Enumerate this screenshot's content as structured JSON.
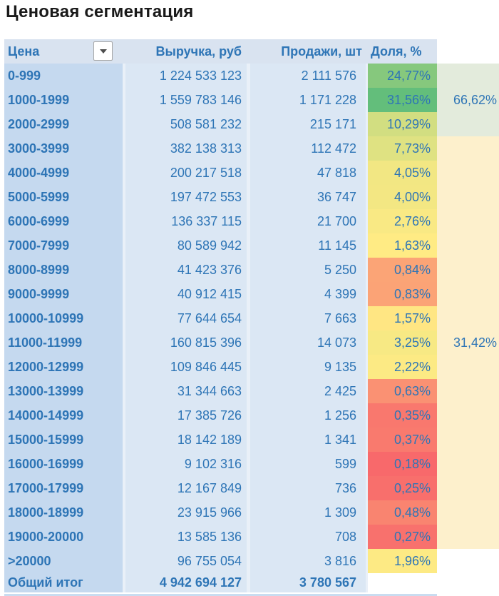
{
  "title": "Ценовая сегментация",
  "colors": {
    "header_bg": "#D9E3F0",
    "price_col_bg": "#C5D9EF",
    "data_col_bg": "#DBE7F4",
    "divider": "#E9F0F8",
    "text_blue": "#2E75B6",
    "zone_green": "#E3EBDC",
    "zone_cream": "#FDF0CC",
    "zone_none": "#FFFFFF",
    "scale_min_red": "#F8696B",
    "scale_mid_yellow": "#FFEB84",
    "scale_max_green": "#63BE7B"
  },
  "table": {
    "headers": {
      "price": "Цена",
      "revenue": "Выручка, руб",
      "sales": "Продажи, шт",
      "share": "Доля, %"
    },
    "filter_icon": "dropdown-arrow",
    "rows": [
      {
        "price": "0-999",
        "revenue": "1 224 533 123",
        "sales": "2 111 576",
        "share": "24,77%",
        "share_bg": "#86C87D",
        "zone": "green",
        "note": ""
      },
      {
        "price": "1000-1999",
        "revenue": "1 559 783 146",
        "sales": "1 171 228",
        "share": "31,56%",
        "share_bg": "#63BE7B",
        "zone": "green",
        "note": "66,62%"
      },
      {
        "price": "2000-2999",
        "revenue": "508 581 232",
        "sales": "215 171",
        "share": "10,29%",
        "share_bg": "#D2DE81",
        "zone": "green",
        "note": ""
      },
      {
        "price": "3000-3999",
        "revenue": "382 138 313",
        "sales": "112 472",
        "share": "7,73%",
        "share_bg": "#DFE282",
        "zone": "cream",
        "note": ""
      },
      {
        "price": "4000-4999",
        "revenue": "200 217 518",
        "sales": "47 818",
        "share": "4,05%",
        "share_bg": "#F2E783",
        "zone": "cream",
        "note": ""
      },
      {
        "price": "5000-5999",
        "revenue": "197 472 553",
        "sales": "36 747",
        "share": "4,00%",
        "share_bg": "#F3E783",
        "zone": "cream",
        "note": ""
      },
      {
        "price": "6000-6999",
        "revenue": "136 337 115",
        "sales": "21 700",
        "share": "2,76%",
        "share_bg": "#F9E984",
        "zone": "cream",
        "note": ""
      },
      {
        "price": "7000-7999",
        "revenue": "80 589 942",
        "sales": "11 145",
        "share": "1,63%",
        "share_bg": "#FFEB84",
        "zone": "cream",
        "note": ""
      },
      {
        "price": "8000-8999",
        "revenue": "41 423 376",
        "sales": "5 250",
        "share": "0,84%",
        "share_bg": "#FBA476",
        "zone": "cream",
        "note": ""
      },
      {
        "price": "9000-9999",
        "revenue": "40 912 415",
        "sales": "4 399",
        "share": "0,83%",
        "share_bg": "#FBA376",
        "zone": "cream",
        "note": ""
      },
      {
        "price": "10000-10999",
        "revenue": "77 644 654",
        "sales": "7 663",
        "share": "1,57%",
        "share_bg": "#FFE683",
        "zone": "cream",
        "note": ""
      },
      {
        "price": "11000-11999",
        "revenue": "160 815 396",
        "sales": "14 073",
        "share": "3,25%",
        "share_bg": "#F7E984",
        "zone": "cream",
        "note": "31,42%"
      },
      {
        "price": "12000-12999",
        "revenue": "109 846 445",
        "sales": "9 135",
        "share": "2,22%",
        "share_bg": "#FCEA84",
        "zone": "cream",
        "note": ""
      },
      {
        "price": "13000-13999",
        "revenue": "31 344 663",
        "sales": "2 425",
        "share": "0,63%",
        "share_bg": "#FA9173",
        "zone": "cream",
        "note": ""
      },
      {
        "price": "14000-14999",
        "revenue": "17 385 726",
        "sales": "1 256",
        "share": "0,35%",
        "share_bg": "#F9786E",
        "zone": "cream",
        "note": ""
      },
      {
        "price": "15000-15999",
        "revenue": "18 142 189",
        "sales": "1 341",
        "share": "0,37%",
        "share_bg": "#F97A6E",
        "zone": "cream",
        "note": ""
      },
      {
        "price": "16000-16999",
        "revenue": "9 102 316",
        "sales": "599",
        "share": "0,18%",
        "share_bg": "#F8696B",
        "zone": "cream",
        "note": ""
      },
      {
        "price": "17000-17999",
        "revenue": "12 167 849",
        "sales": "736",
        "share": "0,25%",
        "share_bg": "#F86F6C",
        "zone": "cream",
        "note": ""
      },
      {
        "price": "18000-18999",
        "revenue": "23 915 966",
        "sales": "1 309",
        "share": "0,48%",
        "share_bg": "#F98470",
        "zone": "cream",
        "note": ""
      },
      {
        "price": "19000-20000",
        "revenue": "13 585 136",
        "sales": "708",
        "share": "0,27%",
        "share_bg": "#F8716D",
        "zone": "cream",
        "note": ""
      },
      {
        "price": ">20000",
        "revenue": "96 755 054",
        "sales": "3 816",
        "share": "1,96%",
        "share_bg": "#FDEA84",
        "zone": "none",
        "note": ""
      }
    ],
    "total": {
      "label": "Общий итог",
      "revenue": "4 942 694 127",
      "sales": "3 780 567"
    }
  },
  "annotations": [
    {
      "label": "66,62%",
      "covers_rows": "0-999 … 2000-2999",
      "bg": "#E3EBDC"
    },
    {
      "label": "31,42%",
      "covers_rows": "3000-3999 … 19000-20000",
      "bg": "#FDF0CC"
    }
  ]
}
